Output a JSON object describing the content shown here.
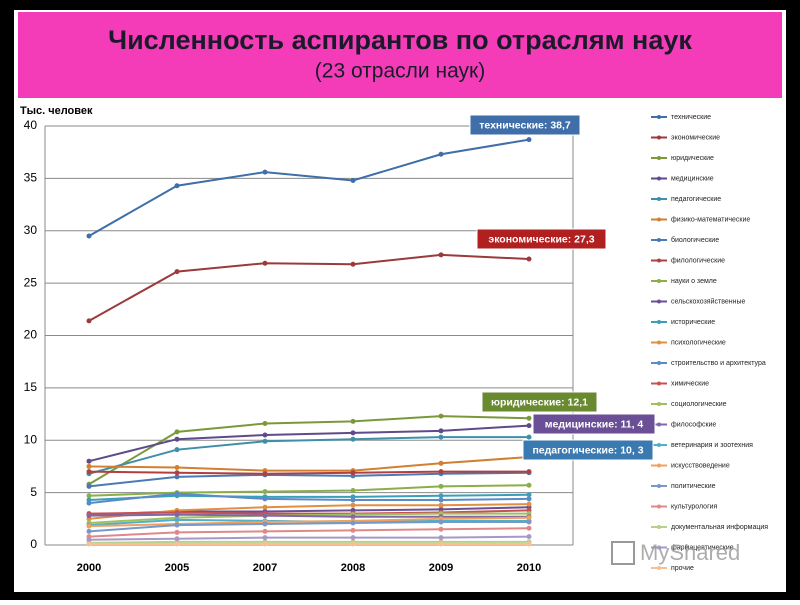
{
  "chart_data": {
    "type": "line",
    "title": "Численность аспирантов по отраслям наук",
    "subtitle": "(23 отрасли наук)",
    "y_label": "Тыс. человек",
    "categories": [
      "2000",
      "2005",
      "2007",
      "2008",
      "2009",
      "2010"
    ],
    "ylim": [
      0,
      40
    ],
    "yticks": [
      0,
      5,
      10,
      15,
      20,
      25,
      30,
      35,
      40
    ],
    "grid": true,
    "legend": "right",
    "series": [
      {
        "name": "технические",
        "color": "#3f6ea8",
        "values": [
          29.5,
          34.3,
          35.6,
          34.8,
          37.3,
          38.7
        ]
      },
      {
        "name": "экономические",
        "color": "#9b3a3a",
        "values": [
          21.4,
          26.1,
          26.9,
          26.8,
          27.7,
          27.3
        ]
      },
      {
        "name": "юридические",
        "color": "#7a9a3a",
        "values": [
          5.8,
          10.8,
          11.6,
          11.8,
          12.3,
          12.1
        ]
      },
      {
        "name": "медицинские",
        "color": "#5f4a8b",
        "values": [
          8.0,
          10.1,
          10.5,
          10.7,
          10.9,
          11.4
        ]
      },
      {
        "name": "педагогические",
        "color": "#3f8fa8",
        "values": [
          6.8,
          9.1,
          9.9,
          10.1,
          10.3,
          10.3
        ]
      },
      {
        "name": "физико-математические",
        "color": "#d08030",
        "values": [
          7.5,
          7.4,
          7.1,
          7.1,
          7.8,
          8.4
        ]
      },
      {
        "name": "биологические",
        "color": "#4a7ab4",
        "values": [
          5.6,
          6.5,
          6.7,
          6.6,
          6.8,
          6.9
        ]
      },
      {
        "name": "филологические",
        "color": "#b04040",
        "values": [
          7.0,
          6.9,
          6.8,
          6.9,
          7.0,
          7.0
        ]
      },
      {
        "name": "науки о земле",
        "color": "#8aae48",
        "values": [
          4.7,
          5.0,
          5.1,
          5.2,
          5.6,
          5.7
        ]
      },
      {
        "name": "сельскохозяйственные",
        "color": "#6a4f96",
        "values": [
          2.9,
          3.2,
          3.2,
          3.3,
          3.4,
          3.6
        ]
      },
      {
        "name": "исторические",
        "color": "#3aa0b8",
        "values": [
          4.3,
          4.7,
          4.6,
          4.6,
          4.7,
          4.8
        ]
      },
      {
        "name": "психологические",
        "color": "#e09040",
        "values": [
          2.5,
          3.3,
          3.6,
          3.8,
          3.8,
          3.9
        ]
      },
      {
        "name": "строительство и архитектура",
        "color": "#5a8ac8",
        "values": [
          4.0,
          4.9,
          4.4,
          4.3,
          4.3,
          4.4
        ]
      },
      {
        "name": "химические",
        "color": "#c85050",
        "values": [
          3.0,
          3.1,
          3.0,
          3.0,
          3.1,
          3.3
        ]
      },
      {
        "name": "социологические",
        "color": "#a0c060",
        "values": [
          2.1,
          2.6,
          2.8,
          2.9,
          3.0,
          3.0
        ]
      },
      {
        "name": "философские",
        "color": "#8068a8",
        "values": [
          2.8,
          2.9,
          2.8,
          2.7,
          2.7,
          2.7
        ]
      },
      {
        "name": "ветеринария и зоотехния",
        "color": "#50b0c8",
        "values": [
          1.9,
          2.4,
          2.3,
          2.2,
          2.3,
          2.3
        ]
      },
      {
        "name": "искусствоведение",
        "color": "#f0a060",
        "values": [
          1.8,
          2.0,
          2.2,
          2.3,
          2.5,
          2.6
        ]
      },
      {
        "name": "политические",
        "color": "#7898c8",
        "values": [
          1.3,
          1.9,
          2.0,
          2.1,
          2.2,
          2.2
        ]
      },
      {
        "name": "культурология",
        "color": "#e08888",
        "values": [
          0.8,
          1.2,
          1.3,
          1.4,
          1.5,
          1.6
        ]
      },
      {
        "name": "документальная информация",
        "color": "#b8d088",
        "values": [
          0.2,
          0.3,
          0.3,
          0.3,
          0.3,
          0.3
        ]
      },
      {
        "name": "фармацевтические",
        "color": "#a898c8",
        "values": [
          0.5,
          0.6,
          0.7,
          0.7,
          0.7,
          0.8
        ]
      },
      {
        "name": "прочие",
        "color": "#f8c090",
        "values": [
          0.1,
          0.1,
          0.1,
          0.1,
          0.1,
          0.1
        ]
      }
    ],
    "annotations": [
      {
        "text": "технические: 38,7",
        "color": "#3f6ea8"
      },
      {
        "text": "экономические: 27,3",
        "color": "#b02020"
      },
      {
        "text": "юридические: 12,1",
        "color": "#6a8a30"
      },
      {
        "text": "медицинские: 11, 4",
        "color": "#6a4f96"
      },
      {
        "text": "педагогические: 10, 3",
        "color": "#3a7ab0"
      }
    ],
    "watermark": "MyShared"
  }
}
